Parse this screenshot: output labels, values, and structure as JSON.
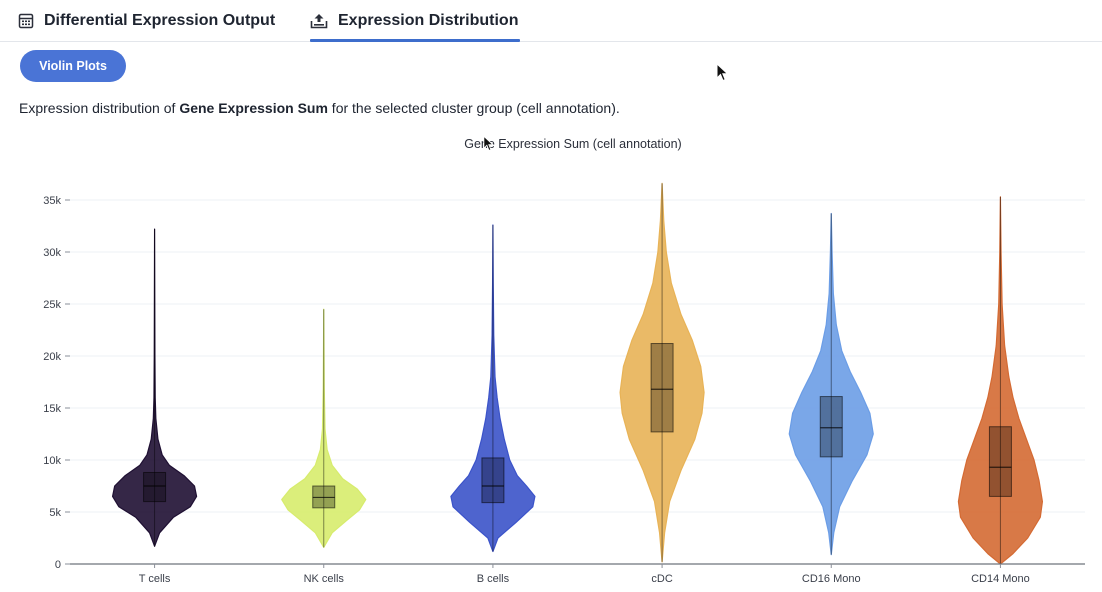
{
  "tabs": [
    {
      "label": "Differential Expression Output",
      "icon": "table-icon",
      "active": false
    },
    {
      "label": "Expression Distribution",
      "icon": "upload-chart-icon",
      "active": true
    }
  ],
  "view_button": {
    "label": "Violin Plots"
  },
  "description": {
    "prefix": "Expression distribution of ",
    "bold": "Gene Expression Sum",
    "suffix": " for the selected cluster group (cell annotation)."
  },
  "colors": {
    "accent": "#3d6dcc",
    "pill": "#4a74d6"
  },
  "chart_data": {
    "type": "violin",
    "title": "Gene Expression Sum (cell annotation)",
    "xlabel": "",
    "ylabel": "",
    "ylim": [
      0,
      36000
    ],
    "yticks": [
      0,
      5000,
      10000,
      15000,
      20000,
      25000,
      30000,
      35000
    ],
    "ytick_labels": [
      "0",
      "5k",
      "10k",
      "15k",
      "20k",
      "25k",
      "30k",
      "35k"
    ],
    "grid": true,
    "categories": [
      "T cells",
      "NK cells",
      "B cells",
      "cDC",
      "CD16 Mono",
      "CD14 Mono"
    ],
    "series": [
      {
        "category": "T cells",
        "color": "#1f1033",
        "min": 1700,
        "max": 32200,
        "q1": 6000,
        "median": 7500,
        "q3": 8800,
        "density": [
          [
            1700,
            0
          ],
          [
            3000,
            0.12
          ],
          [
            4500,
            0.45
          ],
          [
            5500,
            0.85
          ],
          [
            6500,
            1.0
          ],
          [
            7500,
            0.95
          ],
          [
            8500,
            0.7
          ],
          [
            9500,
            0.35
          ],
          [
            10500,
            0.18
          ],
          [
            12000,
            0.08
          ],
          [
            14000,
            0.03
          ],
          [
            16000,
            0.015
          ],
          [
            20000,
            0.008
          ],
          [
            26000,
            0.004
          ],
          [
            32200,
            0
          ]
        ]
      },
      {
        "category": "NK cells",
        "color": "#d7ec6d",
        "min": 1600,
        "max": 24500,
        "q1": 5400,
        "median": 6400,
        "q3": 7500,
        "density": [
          [
            1600,
            0
          ],
          [
            3000,
            0.2
          ],
          [
            4200,
            0.55
          ],
          [
            5200,
            0.85
          ],
          [
            6200,
            1.0
          ],
          [
            7200,
            0.8
          ],
          [
            8200,
            0.45
          ],
          [
            9500,
            0.2
          ],
          [
            11000,
            0.08
          ],
          [
            13000,
            0.03
          ],
          [
            17000,
            0.012
          ],
          [
            24500,
            0
          ]
        ]
      },
      {
        "category": "B cells",
        "color": "#3b53c9",
        "min": 1200,
        "max": 32600,
        "q1": 5900,
        "median": 7500,
        "q3": 10200,
        "density": [
          [
            1200,
            0
          ],
          [
            2500,
            0.12
          ],
          [
            4000,
            0.55
          ],
          [
            5500,
            0.95
          ],
          [
            6500,
            1.0
          ],
          [
            7500,
            0.8
          ],
          [
            8500,
            0.58
          ],
          [
            10000,
            0.4
          ],
          [
            12000,
            0.27
          ],
          [
            14000,
            0.17
          ],
          [
            16000,
            0.1
          ],
          [
            18000,
            0.05
          ],
          [
            22000,
            0.02
          ],
          [
            27000,
            0.008
          ],
          [
            32600,
            0
          ]
        ]
      },
      {
        "category": "cDC",
        "color": "#e8b357",
        "min": 200,
        "max": 36600,
        "q1": 12700,
        "median": 16800,
        "q3": 21200,
        "density": [
          [
            200,
            0
          ],
          [
            3000,
            0.06
          ],
          [
            6000,
            0.18
          ],
          [
            9000,
            0.45
          ],
          [
            12000,
            0.78
          ],
          [
            14500,
            0.95
          ],
          [
            16500,
            1.0
          ],
          [
            19000,
            0.92
          ],
          [
            21500,
            0.72
          ],
          [
            24000,
            0.45
          ],
          [
            27000,
            0.22
          ],
          [
            30000,
            0.1
          ],
          [
            33000,
            0.04
          ],
          [
            36600,
            0
          ]
        ]
      },
      {
        "category": "CD16 Mono",
        "color": "#6b9de6",
        "min": 900,
        "max": 33700,
        "q1": 10300,
        "median": 13100,
        "q3": 16100,
        "density": [
          [
            900,
            0
          ],
          [
            3000,
            0.06
          ],
          [
            5500,
            0.2
          ],
          [
            8000,
            0.5
          ],
          [
            10500,
            0.85
          ],
          [
            12500,
            1.0
          ],
          [
            14500,
            0.92
          ],
          [
            16500,
            0.7
          ],
          [
            18500,
            0.45
          ],
          [
            20500,
            0.25
          ],
          [
            23000,
            0.12
          ],
          [
            26000,
            0.05
          ],
          [
            30000,
            0.02
          ],
          [
            33700,
            0
          ]
        ]
      },
      {
        "category": "CD14 Mono",
        "color": "#d46a33",
        "min": 0,
        "max": 35300,
        "q1": 6500,
        "median": 9300,
        "q3": 13200,
        "density": [
          [
            0,
            0
          ],
          [
            1000,
            0.3
          ],
          [
            2500,
            0.65
          ],
          [
            4500,
            0.95
          ],
          [
            6000,
            1.0
          ],
          [
            8000,
            0.92
          ],
          [
            10000,
            0.8
          ],
          [
            12000,
            0.62
          ],
          [
            14000,
            0.44
          ],
          [
            16000,
            0.3
          ],
          [
            18000,
            0.2
          ],
          [
            21000,
            0.1
          ],
          [
            25000,
            0.04
          ],
          [
            30000,
            0.015
          ],
          [
            35300,
            0
          ]
        ]
      }
    ]
  }
}
